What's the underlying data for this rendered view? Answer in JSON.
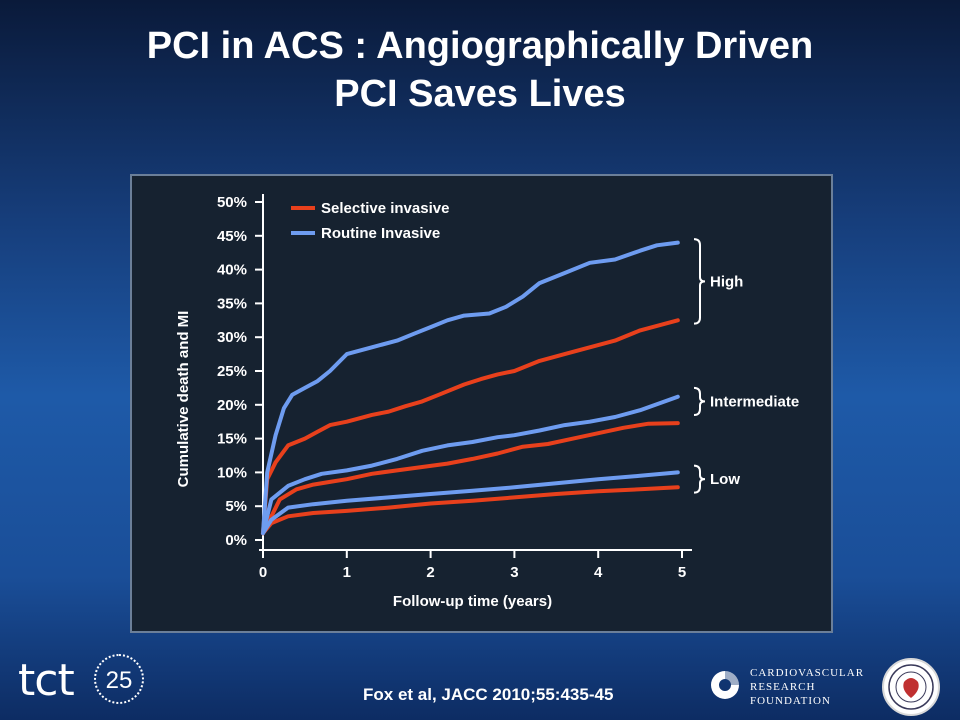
{
  "slide": {
    "title_line1": "PCI in ACS : Angiographically Driven",
    "title_line2": "PCI Saves Lives",
    "citation": "Fox et al, JACC  2010;55:435-45"
  },
  "logos": {
    "tct_text": "tct",
    "tct_number": "25",
    "crf_line1": "CARDIOVASCULAR",
    "crf_line2": "RESEARCH",
    "crf_line3": "FOUNDATION"
  },
  "chart_data": {
    "type": "line",
    "xlabel": "Follow-up time (years)",
    "ylabel": "Cumulative death and MI",
    "xlim": [
      0,
      5
    ],
    "ylim": [
      0,
      50
    ],
    "x_ticks": [
      "0",
      "1",
      "2",
      "3",
      "4",
      "5"
    ],
    "y_ticks": [
      "0%",
      "5%",
      "10%",
      "15%",
      "20%",
      "25%",
      "30%",
      "35%",
      "40%",
      "45%",
      "50%"
    ],
    "legend": [
      {
        "name": "Selective invasive",
        "color": "#e8401c"
      },
      {
        "name": "Routine Invasive",
        "color": "#6e9cf0"
      }
    ],
    "groups": [
      {
        "label": "High",
        "range": [
          32,
          44.5
        ]
      },
      {
        "label": "Intermediate",
        "range": [
          18.5,
          22.5
        ]
      },
      {
        "label": "Low",
        "range": [
          7,
          11
        ]
      }
    ],
    "series": [
      {
        "group": "High",
        "strategy": "Selective invasive",
        "color": "#e8401c",
        "x": [
          0,
          0.05,
          0.15,
          0.3,
          0.5,
          0.65,
          0.8,
          1.0,
          1.15,
          1.3,
          1.5,
          1.7,
          1.9,
          2.1,
          2.4,
          2.6,
          2.8,
          3.0,
          3.3,
          3.6,
          3.9,
          4.2,
          4.5,
          4.8,
          4.95
        ],
        "y": [
          1,
          9,
          11.5,
          14,
          15,
          16,
          17,
          17.5,
          18,
          18.5,
          19,
          19.8,
          20.5,
          21.5,
          23,
          23.8,
          24.5,
          25,
          26.5,
          27.5,
          28.5,
          29.5,
          31,
          32,
          32.5
        ]
      },
      {
        "group": "High",
        "strategy": "Routine Invasive",
        "color": "#6e9cf0",
        "x": [
          0,
          0.05,
          0.15,
          0.25,
          0.35,
          0.5,
          0.65,
          0.8,
          1.0,
          1.3,
          1.6,
          1.8,
          2.0,
          2.2,
          2.4,
          2.7,
          2.9,
          3.1,
          3.3,
          3.6,
          3.9,
          4.2,
          4.5,
          4.7,
          4.95
        ],
        "y": [
          1,
          10,
          15.5,
          19.5,
          21.5,
          22.5,
          23.5,
          25,
          27.5,
          28.5,
          29.5,
          30.5,
          31.5,
          32.5,
          33.2,
          33.5,
          34.5,
          36,
          38,
          39.5,
          41,
          41.5,
          42.8,
          43.6,
          44
        ]
      },
      {
        "group": "Intermediate",
        "strategy": "Selective invasive",
        "color": "#e8401c",
        "x": [
          0,
          0.2,
          0.4,
          0.6,
          0.8,
          1.0,
          1.3,
          1.6,
          1.9,
          2.2,
          2.5,
          2.8,
          3.1,
          3.4,
          3.7,
          4.0,
          4.3,
          4.6,
          4.95
        ],
        "y": [
          1,
          6,
          7.5,
          8.2,
          8.6,
          9,
          9.8,
          10.3,
          10.8,
          11.3,
          12,
          12.8,
          13.8,
          14.2,
          15,
          15.8,
          16.6,
          17.2,
          17.3
        ]
      },
      {
        "group": "Intermediate",
        "strategy": "Routine Invasive",
        "color": "#6e9cf0",
        "x": [
          0,
          0.1,
          0.3,
          0.5,
          0.7,
          1.0,
          1.3,
          1.6,
          1.9,
          2.2,
          2.5,
          2.8,
          3.0,
          3.3,
          3.6,
          3.9,
          4.2,
          4.5,
          4.95
        ],
        "y": [
          1,
          6,
          8,
          9,
          9.8,
          10.3,
          11,
          12,
          13.2,
          14,
          14.5,
          15.2,
          15.5,
          16.2,
          17,
          17.5,
          18.2,
          19.2,
          21.2
        ]
      },
      {
        "group": "Low",
        "strategy": "Selective invasive",
        "color": "#e8401c",
        "x": [
          0,
          0.1,
          0.3,
          0.6,
          1.0,
          1.5,
          2.0,
          2.5,
          3.0,
          3.5,
          4.0,
          4.5,
          4.95
        ],
        "y": [
          1,
          2.5,
          3.5,
          4,
          4.3,
          4.8,
          5.4,
          5.8,
          6.3,
          6.8,
          7.2,
          7.5,
          7.8
        ]
      },
      {
        "group": "Low",
        "strategy": "Routine Invasive",
        "color": "#6e9cf0",
        "x": [
          0,
          0.1,
          0.3,
          0.6,
          1.0,
          1.5,
          2.0,
          2.5,
          3.0,
          3.5,
          4.0,
          4.5,
          4.95
        ],
        "y": [
          1,
          3,
          4.8,
          5.3,
          5.8,
          6.3,
          6.8,
          7.3,
          7.8,
          8.4,
          9,
          9.5,
          10
        ]
      }
    ]
  }
}
